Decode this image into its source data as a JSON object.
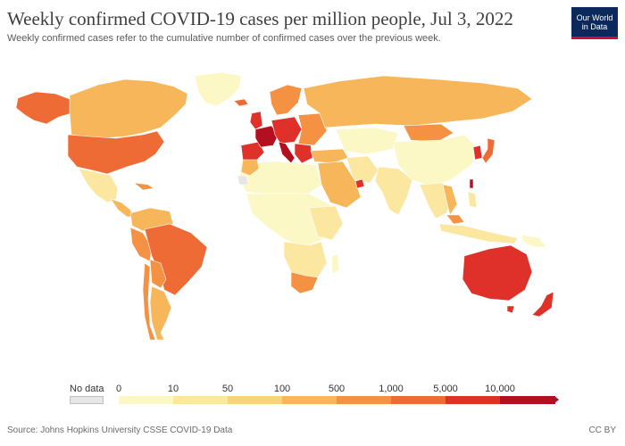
{
  "header": {
    "title": "Weekly confirmed COVID-19 cases per million people, Jul 3, 2022",
    "subtitle": "Weekly confirmed cases refer to the cumulative number of confirmed cases over the previous week."
  },
  "logo": {
    "line1": "Our World",
    "line2": "in Data"
  },
  "legend": {
    "no_data_label": "No data",
    "ticks": [
      "0",
      "10",
      "50",
      "100",
      "500",
      "1,000",
      "5,000",
      "10,000"
    ],
    "colors": [
      "#fcf8c6",
      "#fbe7a0",
      "#fad27c",
      "#f8b65a",
      "#f49143",
      "#ef6b36",
      "#e0302a",
      "#b30f21"
    ],
    "no_data_color": "#e6e6e6"
  },
  "footer": {
    "source": "Source: Johns Hopkins University CSSE COVID-19 Data",
    "license": "CC BY"
  },
  "map_data": {
    "regions": [
      {
        "name": "North America",
        "color": "#ef6b36"
      },
      {
        "name": "Canada",
        "color": "#f8b65a"
      },
      {
        "name": "Alaska",
        "color": "#ef6b36"
      },
      {
        "name": "Greenland",
        "color": "#fcf8c6"
      },
      {
        "name": "Mexico",
        "color": "#fbe7a0"
      },
      {
        "name": "Central America",
        "color": "#f8b65a"
      },
      {
        "name": "South America",
        "color": "#f8b65a"
      },
      {
        "name": "Brazil",
        "color": "#ef6b36"
      },
      {
        "name": "Chile",
        "color": "#f49143"
      },
      {
        "name": "Europe",
        "color": "#e0302a"
      },
      {
        "name": "France",
        "color": "#b30f21"
      },
      {
        "name": "Russia",
        "color": "#f8b65a"
      },
      {
        "name": "Africa",
        "color": "#fcf8c6"
      },
      {
        "name": "South Africa",
        "color": "#f49143"
      },
      {
        "name": "Middle East",
        "color": "#f8b65a"
      },
      {
        "name": "Central Asia",
        "color": "#fcf8c6"
      },
      {
        "name": "China",
        "color": "#fcf8c6"
      },
      {
        "name": "India",
        "color": "#fbe7a0"
      },
      {
        "name": "Mongolia",
        "color": "#f49143"
      },
      {
        "name": "Japan",
        "color": "#ef6b36"
      },
      {
        "name": "South Korea",
        "color": "#e0302a"
      },
      {
        "name": "Southeast Asia",
        "color": "#fbe7a0"
      },
      {
        "name": "Australia",
        "color": "#e0302a"
      },
      {
        "name": "New Zealand",
        "color": "#e0302a"
      }
    ]
  }
}
